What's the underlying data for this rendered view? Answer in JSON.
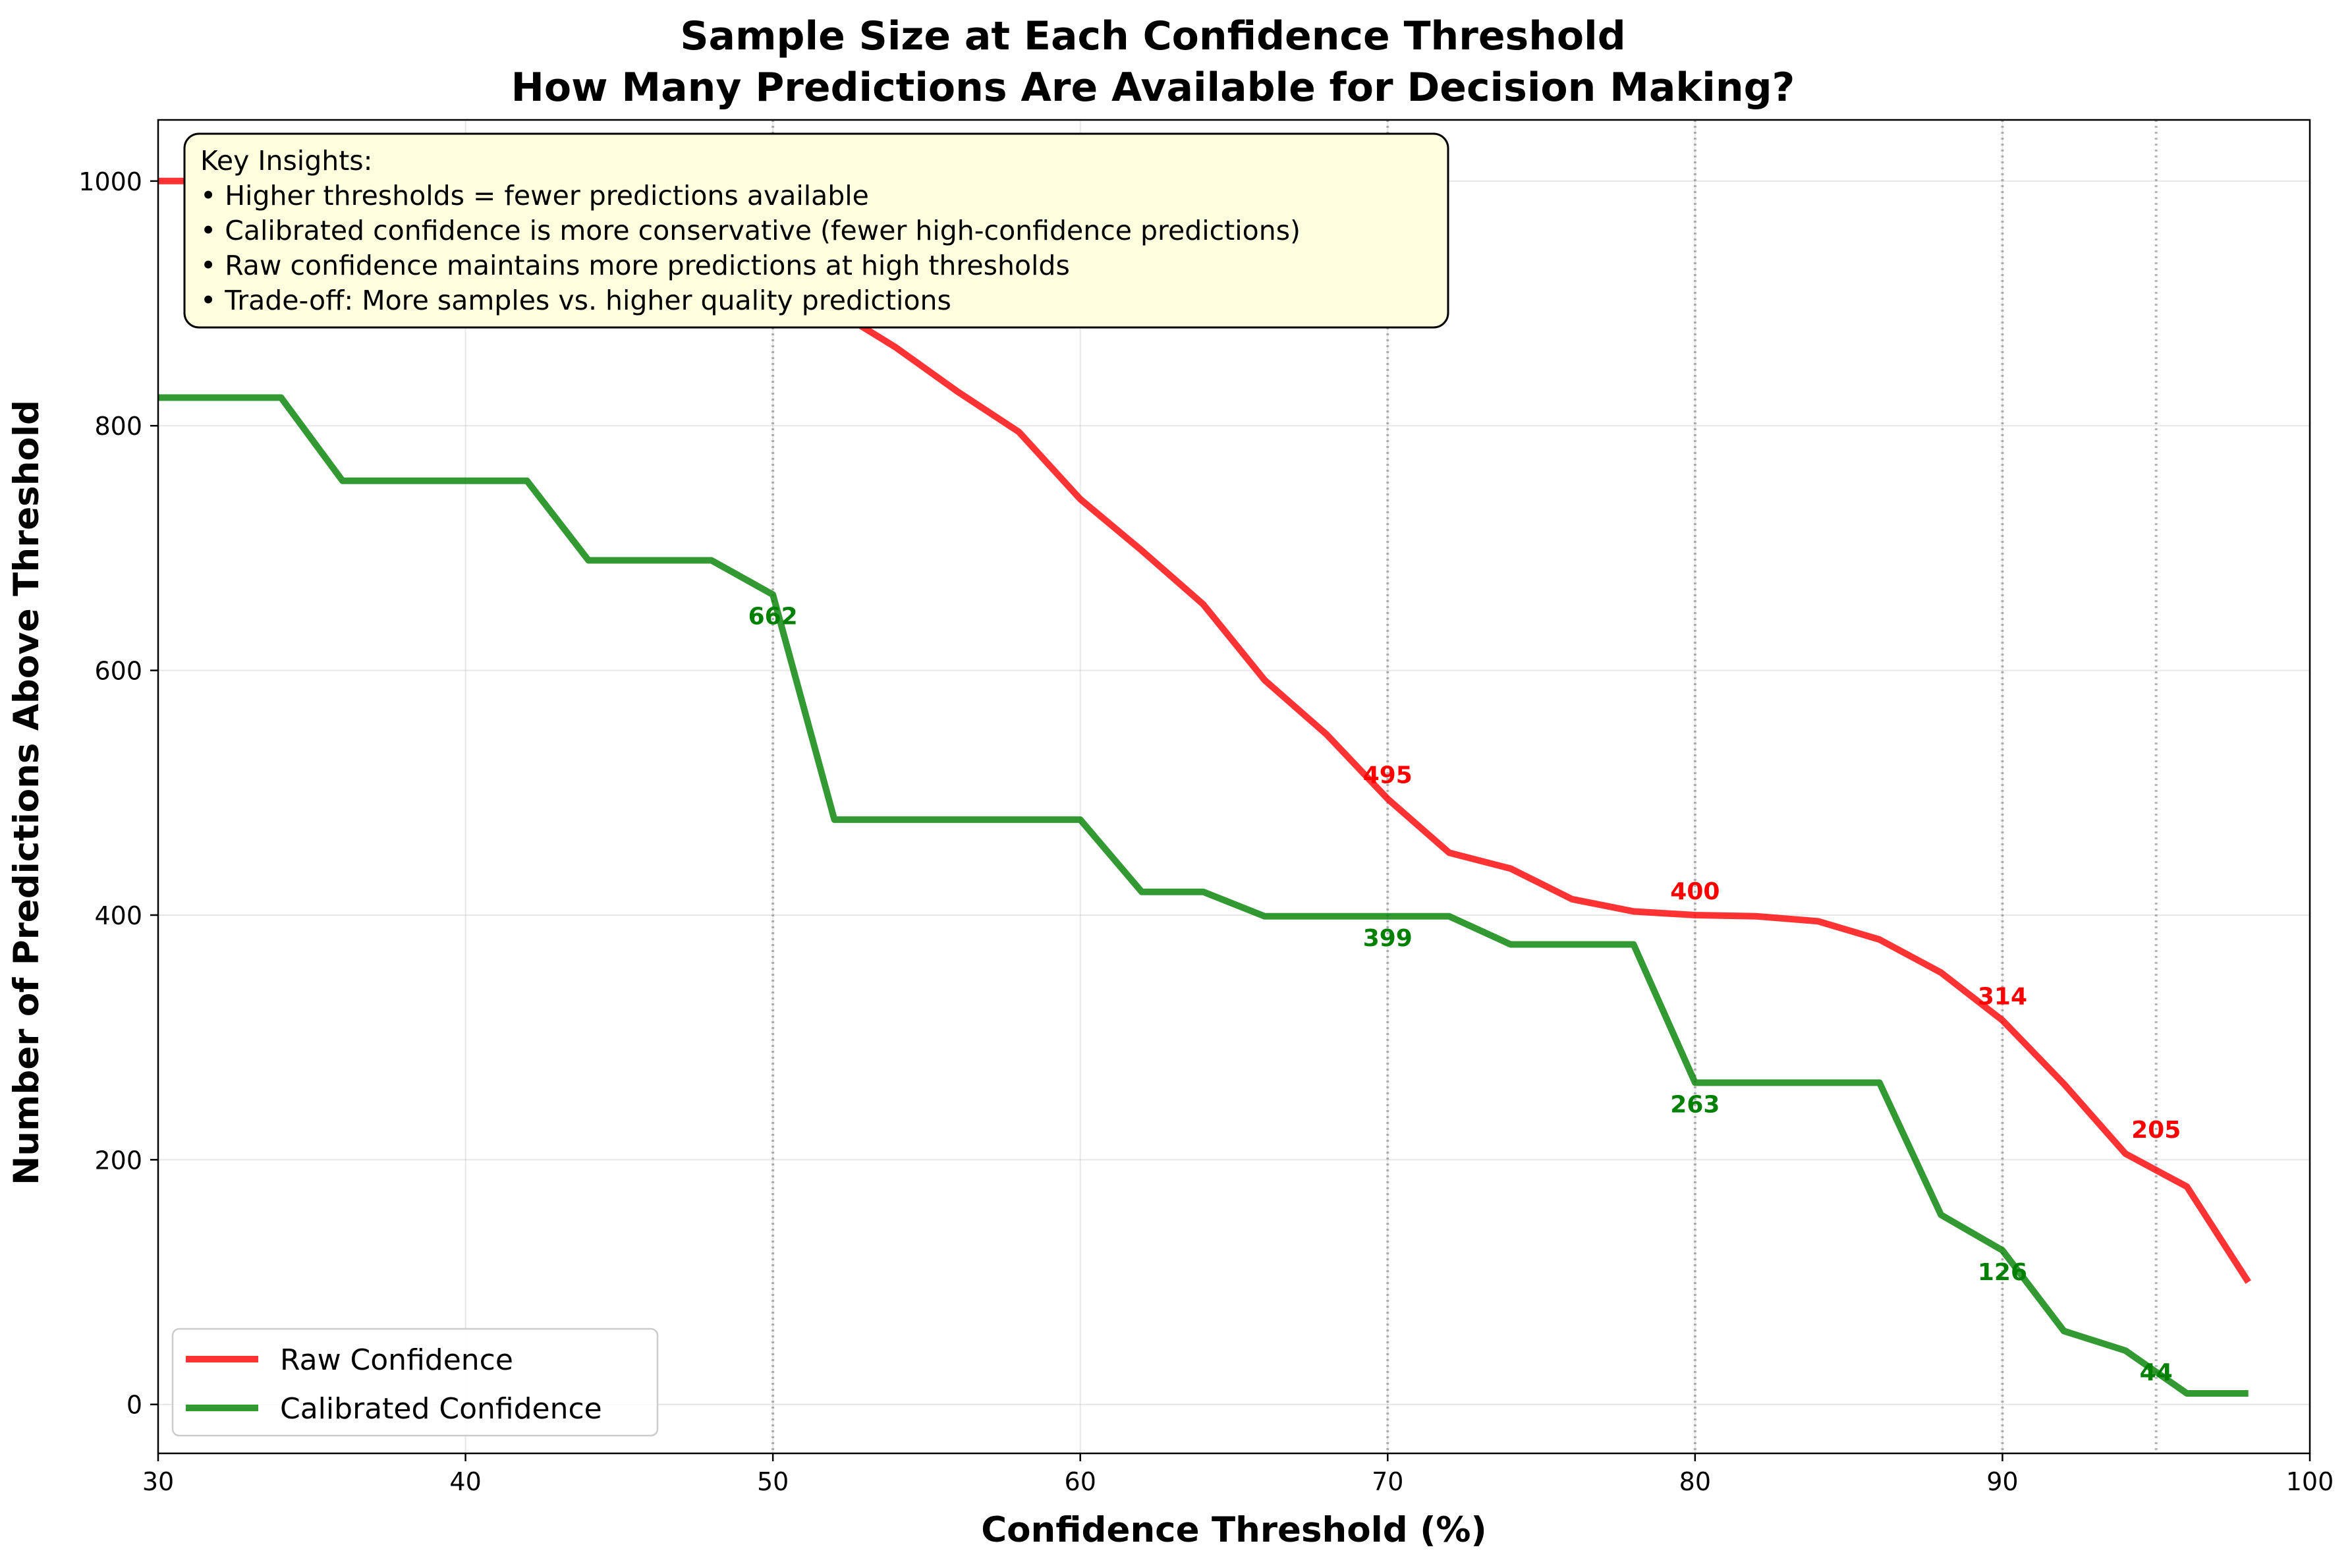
{
  "chart_data": {
    "type": "line",
    "title": "Sample Size at Each Confidence Threshold",
    "subtitle": "How Many Predictions Are Available for Decision Making?",
    "xlabel": "Confidence Threshold (%)",
    "ylabel": "Number of Predictions Above Threshold",
    "xlim": [
      30,
      100
    ],
    "ylim": [
      -40,
      1050
    ],
    "xticks": [
      30,
      40,
      50,
      60,
      70,
      80,
      90,
      100
    ],
    "yticks": [
      0,
      200,
      400,
      600,
      800,
      1000
    ],
    "grid": true,
    "legend_position": "lower-left",
    "vlines": [
      50,
      70,
      80,
      90,
      95
    ],
    "x": [
      30,
      32,
      34,
      36,
      38,
      40,
      42,
      44,
      46,
      48,
      50,
      52,
      54,
      56,
      58,
      60,
      62,
      64,
      66,
      68,
      70,
      72,
      74,
      76,
      78,
      80,
      82,
      84,
      86,
      88,
      90,
      92,
      94,
      96,
      98
    ],
    "series": [
      {
        "name": "Raw Confidence",
        "color": "#ff0000",
        "values": [
          1000,
          1000,
          1000,
          1000,
          1000,
          1000,
          1000,
          1000,
          996,
          985,
          966,
          895,
          864,
          828,
          795,
          740,
          698,
          654,
          592,
          548,
          495,
          451,
          438,
          413,
          403,
          400,
          399,
          395,
          380,
          353,
          314,
          262,
          205,
          178,
          100
        ]
      },
      {
        "name": "Calibrated Confidence",
        "color": "#008000",
        "values": [
          823,
          823,
          823,
          755,
          755,
          755,
          755,
          690,
          690,
          690,
          662,
          478,
          478,
          478,
          478,
          478,
          419,
          419,
          399,
          399,
          399,
          399,
          376,
          376,
          376,
          263,
          263,
          263,
          263,
          155,
          126,
          60,
          44,
          9,
          9
        ]
      }
    ],
    "annotations": [
      {
        "series": 0,
        "x": 70,
        "y": 495,
        "text": "495"
      },
      {
        "series": 0,
        "x": 80,
        "y": 400,
        "text": "400"
      },
      {
        "series": 0,
        "x": 90,
        "y": 314,
        "text": "314"
      },
      {
        "series": 0,
        "x": 95,
        "y": 205,
        "text": "205"
      },
      {
        "series": 1,
        "x": 50,
        "y": 662,
        "text": "662"
      },
      {
        "series": 1,
        "x": 70,
        "y": 399,
        "text": "399"
      },
      {
        "series": 1,
        "x": 80,
        "y": 263,
        "text": "263"
      },
      {
        "series": 1,
        "x": 90,
        "y": 126,
        "text": "126"
      },
      {
        "series": 1,
        "x": 95,
        "y": 44,
        "text": "44"
      }
    ],
    "insights": {
      "heading": "Key Insights:",
      "lines": [
        "• Higher thresholds = fewer predictions available",
        "• Calibrated confidence is more conservative (fewer high-confidence predictions)",
        "• Raw confidence maintains more predictions at high thresholds",
        "• Trade-off: More samples vs. higher quality predictions"
      ],
      "background": "#ffffe0"
    }
  }
}
